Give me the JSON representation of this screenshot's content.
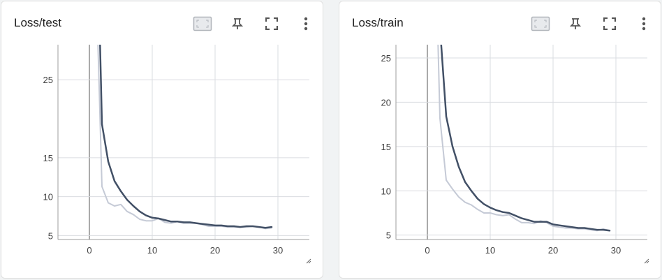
{
  "colors": {
    "smoothed_line": "#425066",
    "raw_line": "#c5cad6",
    "grid": "#dadce0",
    "axis": "#9e9e9e",
    "zero_line": "#aaaaaa"
  },
  "toolbar": {
    "icons": [
      "toggle-data-selection-icon",
      "pin-icon",
      "fullscreen-icon",
      "more-vert-icon"
    ]
  },
  "chart_data": [
    {
      "type": "line",
      "title": "Loss/test",
      "xlabel": "",
      "ylabel": "",
      "xlim": [
        -5,
        35
      ],
      "ylim": [
        4.5,
        29.5
      ],
      "x_ticks": [
        0,
        10,
        20,
        30
      ],
      "y_ticks": [
        5,
        10,
        15,
        25
      ],
      "x_tick_labels": [
        "0",
        "10",
        "20",
        "30"
      ],
      "y_tick_labels": [
        "5",
        "10",
        "15",
        "25"
      ],
      "grid": true,
      "series": [
        {
          "role": "raw",
          "x": [
            1,
            2,
            3,
            4,
            5,
            6,
            7,
            8,
            9,
            10,
            11,
            12,
            13,
            14,
            15,
            16,
            17,
            18,
            19,
            20,
            21,
            22,
            23,
            24,
            25,
            26,
            27,
            28,
            29
          ],
          "y": [
            40,
            11.3,
            9.2,
            8.8,
            9.0,
            8.1,
            7.7,
            7.1,
            6.9,
            6.9,
            7.2,
            6.7,
            6.6,
            6.8,
            6.6,
            6.6,
            6.6,
            6.4,
            6.2,
            6.2,
            6.2,
            6.1,
            6.1,
            6.1,
            6.1,
            6.2,
            6.1,
            5.9,
            6.0
          ]
        },
        {
          "role": "smoothed",
          "x": [
            1.7,
            2,
            3,
            4,
            5,
            6,
            7,
            8,
            9,
            10,
            11,
            12,
            13,
            14,
            15,
            16,
            17,
            18,
            19,
            20,
            21,
            22,
            23,
            24,
            25,
            26,
            27,
            28,
            29
          ],
          "y": [
            29.5,
            19.3,
            14.5,
            12.0,
            10.7,
            9.6,
            8.8,
            8.1,
            7.6,
            7.3,
            7.2,
            7.0,
            6.8,
            6.8,
            6.7,
            6.7,
            6.6,
            6.5,
            6.4,
            6.3,
            6.3,
            6.2,
            6.2,
            6.1,
            6.2,
            6.2,
            6.1,
            6.0,
            6.1
          ]
        }
      ]
    },
    {
      "type": "line",
      "title": "Loss/train",
      "xlabel": "",
      "ylabel": "",
      "xlim": [
        -5,
        35
      ],
      "ylim": [
        4.5,
        26.5
      ],
      "x_ticks": [
        0,
        10,
        20,
        30
      ],
      "y_ticks": [
        5,
        10,
        15,
        20,
        25
      ],
      "x_tick_labels": [
        "0",
        "10",
        "20",
        "30"
      ],
      "y_tick_labels": [
        "5",
        "10",
        "15",
        "20",
        "25"
      ],
      "grid": true,
      "series": [
        {
          "role": "raw",
          "x": [
            1.7,
            2,
            3,
            4,
            5,
            6,
            7,
            8,
            9,
            10,
            11,
            12,
            13,
            14,
            15,
            16,
            17,
            18,
            19,
            20,
            21,
            22,
            23,
            24,
            25,
            26,
            27,
            28,
            29
          ],
          "y": [
            26.5,
            18.2,
            11.2,
            10.2,
            9.3,
            8.7,
            8.4,
            7.9,
            7.5,
            7.5,
            7.3,
            7.2,
            7.3,
            6.8,
            6.4,
            6.4,
            6.3,
            6.6,
            6.4,
            6.0,
            5.9,
            5.8,
            5.8,
            5.7,
            5.7,
            5.6,
            5.5,
            5.7,
            5.5
          ]
        },
        {
          "role": "smoothed",
          "x": [
            2.2,
            3,
            4,
            5,
            6,
            7,
            8,
            9,
            10,
            11,
            12,
            13,
            14,
            15,
            16,
            17,
            18,
            19,
            20,
            21,
            22,
            23,
            24,
            25,
            26,
            27,
            28,
            29
          ],
          "y": [
            26.5,
            18.4,
            15.0,
            12.7,
            11.0,
            10.0,
            9.1,
            8.5,
            8.1,
            7.8,
            7.6,
            7.5,
            7.2,
            6.9,
            6.7,
            6.5,
            6.5,
            6.5,
            6.2,
            6.1,
            6.0,
            5.9,
            5.8,
            5.8,
            5.7,
            5.6,
            5.6,
            5.5
          ]
        }
      ]
    }
  ]
}
